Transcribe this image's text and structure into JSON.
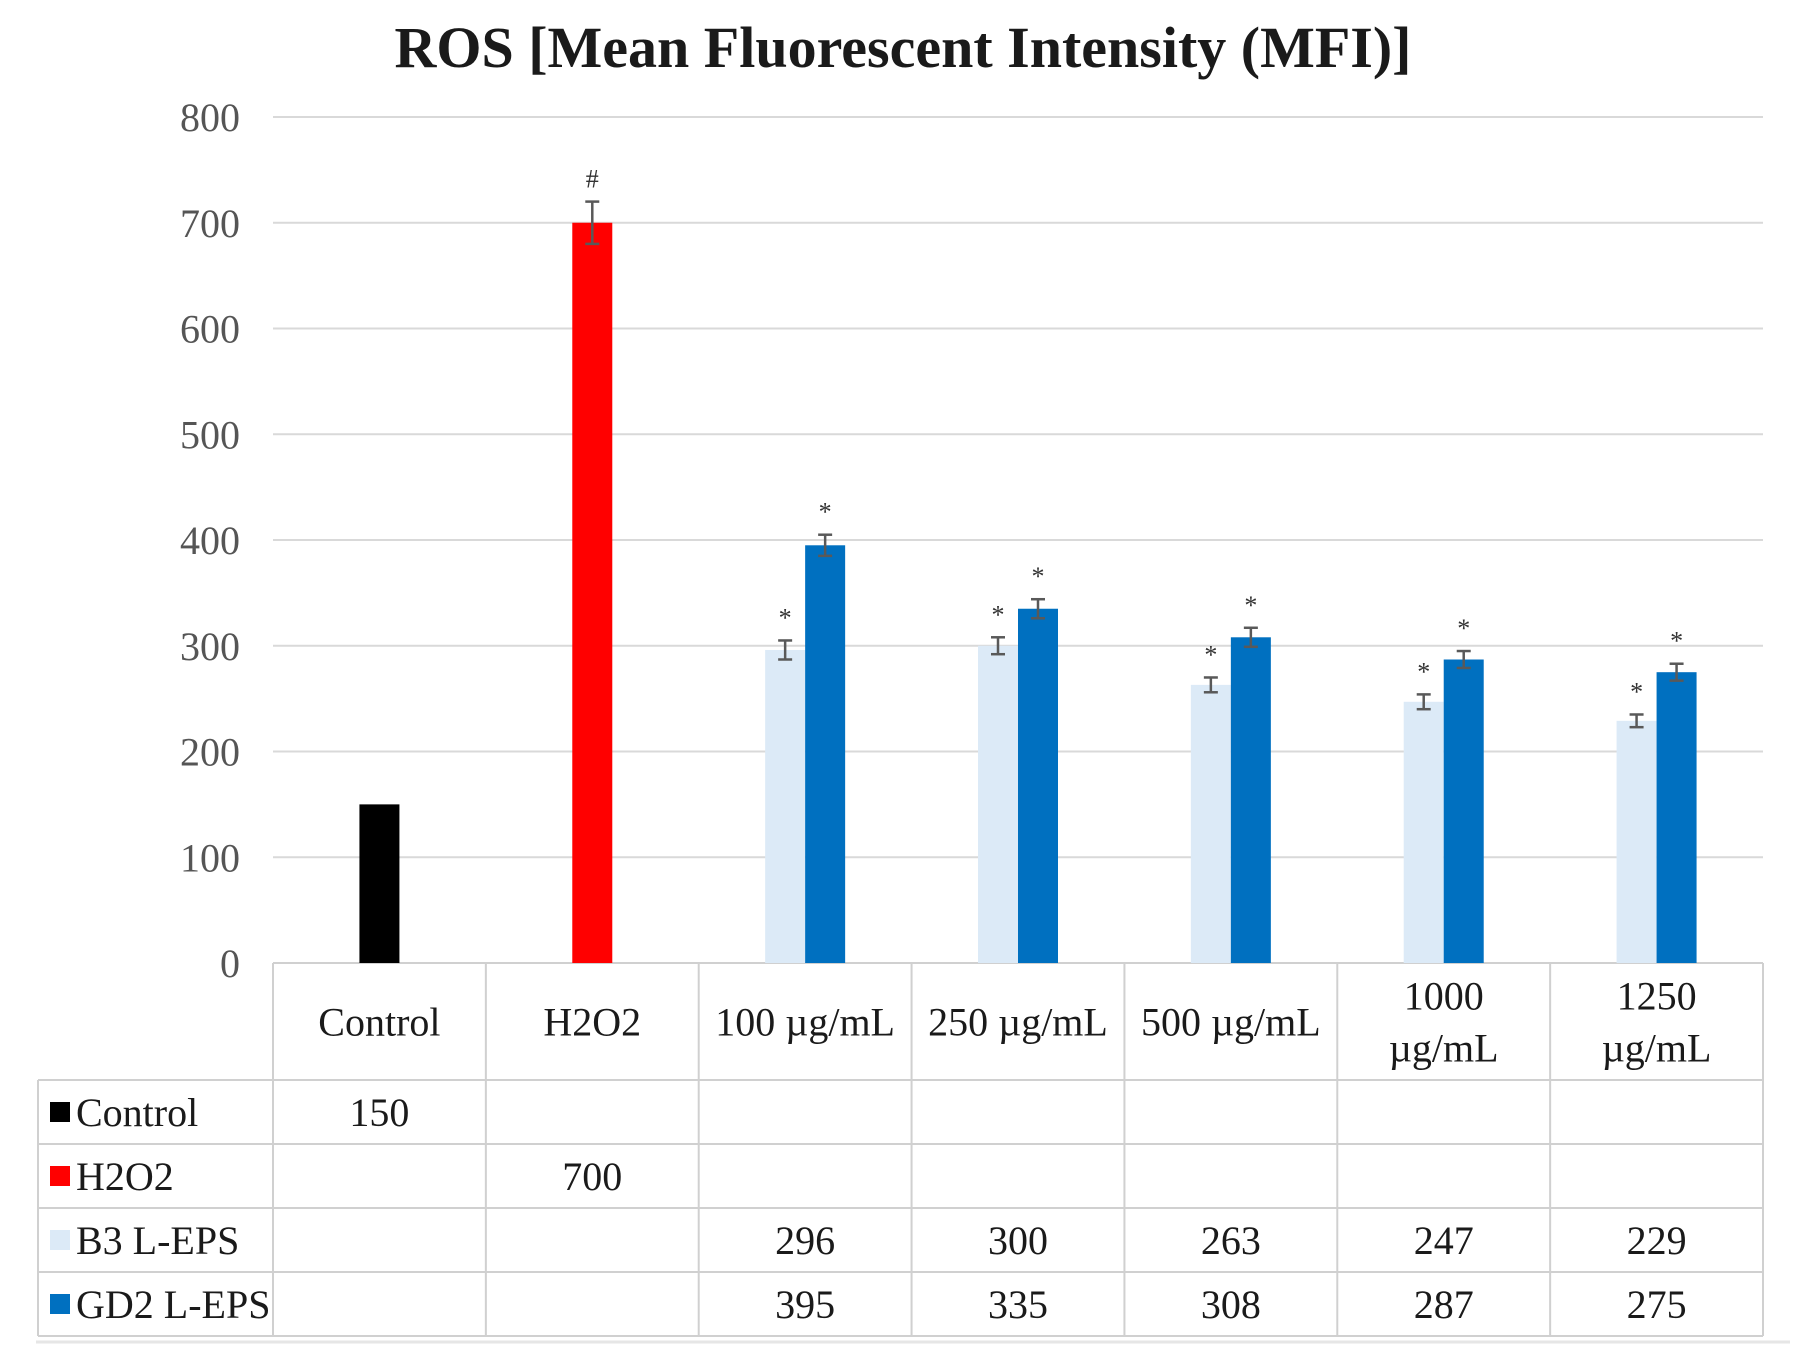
{
  "chart_data": {
    "type": "bar",
    "title": "ROS [Mean Fluorescent Intensity (MFI)]",
    "xlabel": "",
    "ylabel": "",
    "ylim": [
      0,
      800
    ],
    "yticks": [
      0,
      100,
      200,
      300,
      400,
      500,
      600,
      700,
      800
    ],
    "grid": true,
    "legend": "data-table-below",
    "categories": [
      "Control",
      "H2O2",
      "100 µg/mL",
      "250 µg/mL",
      "500 µg/mL",
      "1000 µg/mL",
      "1250 µg/mL"
    ],
    "category_lines": [
      [
        "Control"
      ],
      [
        "H2O2"
      ],
      [
        "100 µg/mL"
      ],
      [
        "250 µg/mL"
      ],
      [
        "500 µg/mL"
      ],
      [
        "1000",
        "µg/mL"
      ],
      [
        "1250",
        "µg/mL"
      ]
    ],
    "series": [
      {
        "name": "Control",
        "color": "#000000",
        "values": [
          150,
          null,
          null,
          null,
          null,
          null,
          null
        ],
        "errors": [
          null,
          null,
          null,
          null,
          null,
          null,
          null
        ],
        "markers": [
          null,
          null,
          null,
          null,
          null,
          null,
          null
        ]
      },
      {
        "name": "H2O2",
        "color": "#ff0000",
        "values": [
          null,
          700,
          null,
          null,
          null,
          null,
          null
        ],
        "errors": [
          null,
          20,
          null,
          null,
          null,
          null,
          null
        ],
        "markers": [
          null,
          "#",
          null,
          null,
          null,
          null,
          null
        ]
      },
      {
        "name": "B3 L-EPS",
        "color": "#dceaf7",
        "values": [
          null,
          null,
          296,
          300,
          263,
          247,
          229
        ],
        "errors": [
          null,
          null,
          9,
          8,
          7,
          7,
          6
        ],
        "markers": [
          null,
          null,
          "*",
          "*",
          "*",
          "*",
          "*"
        ]
      },
      {
        "name": "GD2 L-EPS",
        "color": "#0070c0",
        "values": [
          null,
          null,
          395,
          335,
          308,
          287,
          275
        ],
        "errors": [
          null,
          null,
          10,
          9,
          9,
          8,
          8
        ],
        "markers": [
          null,
          null,
          "*",
          "*",
          "*",
          "*",
          "*"
        ]
      }
    ]
  }
}
